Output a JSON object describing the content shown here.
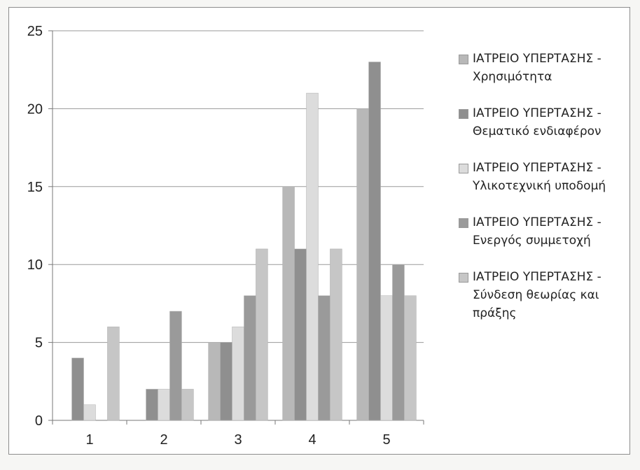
{
  "chart_data": {
    "type": "bar",
    "categories": [
      "1",
      "2",
      "3",
      "4",
      "5"
    ],
    "ylim": [
      0,
      25
    ],
    "yticks": [
      "0",
      "5",
      "10",
      "15",
      "20",
      "25"
    ],
    "grid": true,
    "legend_position": "right",
    "series": [
      {
        "name": "ΙΑΤΡΕΙΟ ΥΠΕΡΤΑΣΗΣ - Χρησιμότητα",
        "line1": "ΙΑΤΡΕΙΟ ΥΠΕΡΤΑΣΗΣ -",
        "line2": "Χρησιμότητα",
        "color": "#b8b8b8",
        "values": [
          0,
          0,
          5,
          15,
          20
        ]
      },
      {
        "name": "ΙΑΤΡΕΙΟ ΥΠΕΡΤΑΣΗΣ - Θεματικό ενδιαφέρον",
        "line1": "ΙΑΤΡΕΙΟ ΥΠΕΡΤΑΣΗΣ -",
        "line2": "Θεματικό ενδιαφέρον",
        "color": "#8f8f8f",
        "values": [
          4,
          2,
          5,
          11,
          23
        ]
      },
      {
        "name": "ΙΑΤΡΕΙΟ ΥΠΕΡΤΑΣΗΣ - Υλικοτεχνική υποδομή",
        "line1": "ΙΑΤΡΕΙΟ ΥΠΕΡΤΑΣΗΣ -",
        "line2": "Υλικοτεχνική υποδομή",
        "color": "#dcdcdc",
        "values": [
          1,
          2,
          6,
          21,
          8
        ]
      },
      {
        "name": "ΙΑΤΡΕΙΟ ΥΠΕΡΤΑΣΗΣ - Ενεργός συμμετοχή",
        "line1": "ΙΑΤΡΕΙΟ ΥΠΕΡΤΑΣΗΣ -",
        "line2": "Ενεργός συμμετοχή",
        "color": "#9a9a9a",
        "values": [
          0,
          7,
          8,
          8,
          10
        ]
      },
      {
        "name": "ΙΑΤΡΕΙΟ ΥΠΕΡΤΑΣΗΣ - Σύνδεση θεωρίας και πράξης",
        "line1": "ΙΑΤΡΕΙΟ ΥΠΕΡΤΑΣΗΣ -",
        "line2": "Σύνδεση θεωρίας και",
        "line3": "πράξης",
        "color": "#c6c6c6",
        "values": [
          6,
          2,
          11,
          11,
          8
        ]
      }
    ]
  }
}
